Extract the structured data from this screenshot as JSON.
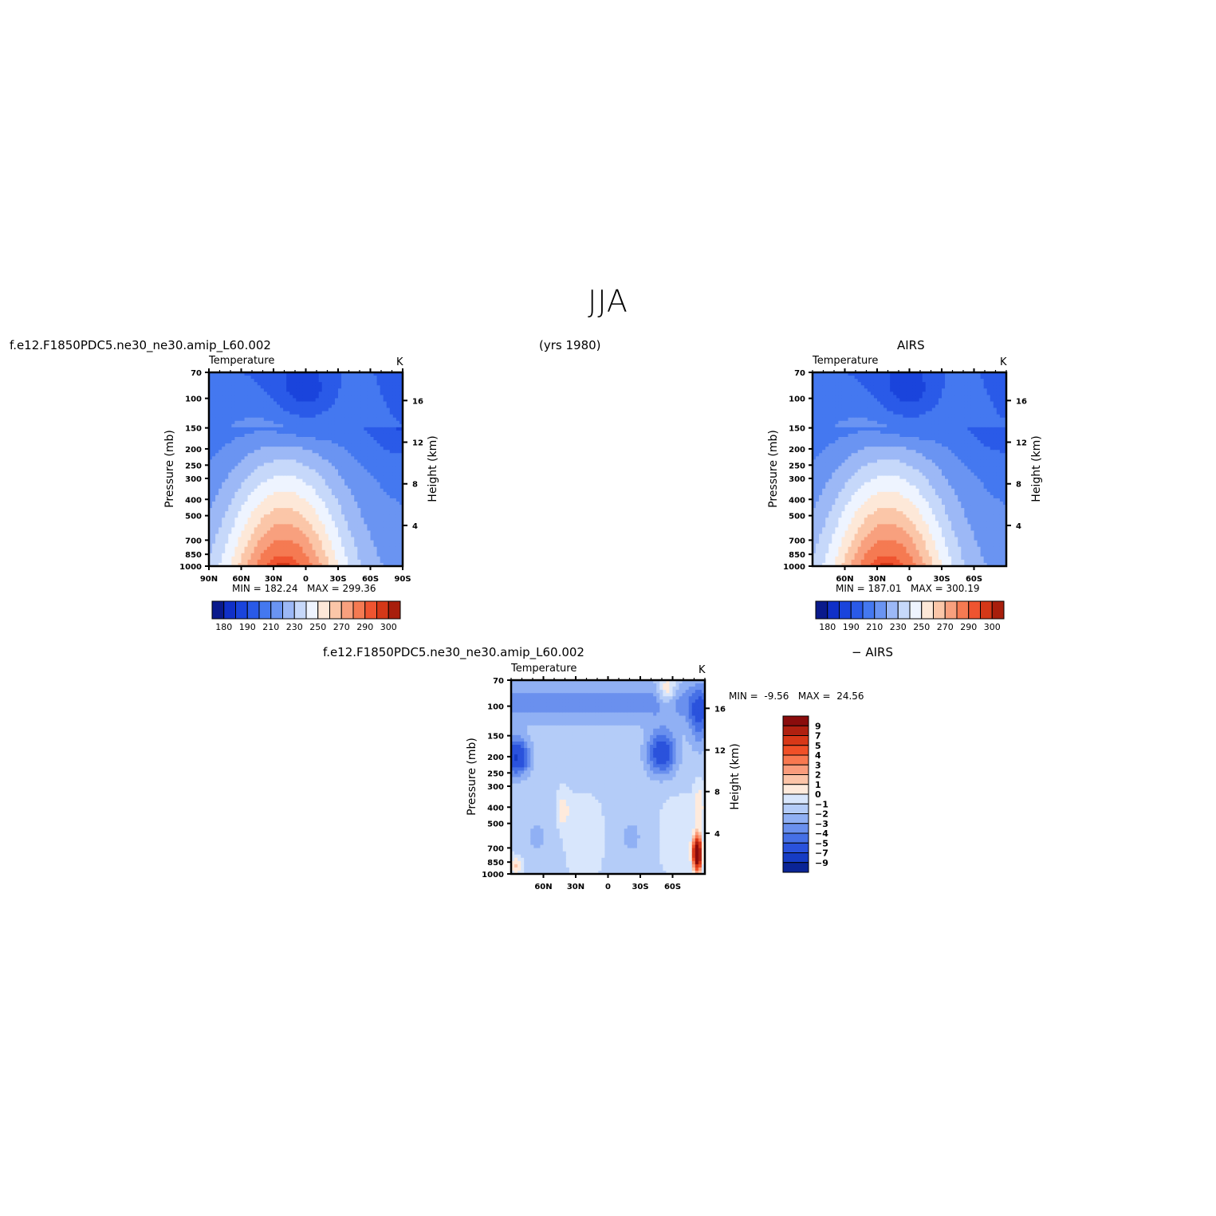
{
  "page": {
    "title": "JJA",
    "years": "(yrs 1980)",
    "model_name": "f.e12.F1850PDC5.ne30_ne30.amip_L60.002",
    "obs_name": "AIRS",
    "diff_label": "− AIRS"
  },
  "chart_data": [
    {
      "type": "heatmap",
      "id": "model",
      "title": "f.e12.F1850PDC5.ne30_ne30.amip_L60.002",
      "left_string": "Temperature",
      "right_string": "K",
      "ylabel": "Pressure (mb)",
      "ylabel_right": "Height (km)",
      "x_ticks": [
        "90N",
        "60N",
        "30N",
        "0",
        "30S",
        "60S",
        "90S"
      ],
      "y_ticks": [
        "70",
        "100",
        "150",
        "200",
        "250",
        "300",
        "400",
        "500",
        "700",
        "850",
        "1000"
      ],
      "height_ticks": [
        "4",
        "8",
        "12",
        "16"
      ],
      "xlim": [
        "90N",
        "90S"
      ],
      "ylim": [
        1000,
        70
      ],
      "min_label": "MIN =",
      "min": "182.24",
      "max_label": "MAX =",
      "max": "299.36",
      "colorbar_labels": [
        "180",
        "190",
        "210",
        "230",
        "250",
        "270",
        "290",
        "300"
      ]
    },
    {
      "type": "heatmap",
      "id": "obs",
      "title": "AIRS",
      "left_string": "Temperature",
      "right_string": "K",
      "ylabel": "Pressure (mb)",
      "ylabel_right": "Height (km)",
      "x_ticks": [
        "60N",
        "30N",
        "0",
        "30S",
        "60S"
      ],
      "y_ticks": [
        "70",
        "100",
        "150",
        "200",
        "250",
        "300",
        "400",
        "500",
        "700",
        "850",
        "1000"
      ],
      "height_ticks": [
        "4",
        "8",
        "12",
        "16"
      ],
      "ylim": [
        1000,
        70
      ],
      "min_label": "MIN =",
      "min": "187.01",
      "max_label": "MAX =",
      "max": "300.19",
      "colorbar_labels": [
        "180",
        "190",
        "210",
        "230",
        "250",
        "270",
        "290",
        "300"
      ]
    },
    {
      "type": "heatmap",
      "id": "diff",
      "title": "f.e12.F1850PDC5.ne30_ne30.amip_L60.002",
      "title_right": "− AIRS",
      "left_string": "Temperature",
      "right_string": "K",
      "ylabel": "Pressure (mb)",
      "ylabel_right": "Height (km)",
      "x_ticks": [
        "60N",
        "30N",
        "0",
        "30S",
        "60S"
      ],
      "y_ticks": [
        "70",
        "100",
        "150",
        "200",
        "250",
        "300",
        "400",
        "500",
        "700",
        "850",
        "1000"
      ],
      "height_ticks": [
        "4",
        "8",
        "12",
        "16"
      ],
      "ylim": [
        1000,
        70
      ],
      "min_label": "MIN =",
      "min": "-9.56",
      "max_label": "MAX =",
      "max": "24.56",
      "colorbar_labels": [
        "9",
        "7",
        "5",
        "4",
        "3",
        "2",
        "1",
        "0",
        "−1",
        "−2",
        "−3",
        "−4",
        "−5",
        "−7",
        "−9"
      ]
    }
  ],
  "colors": {
    "abs_palette": [
      "#0a1a8c",
      "#1030c8",
      "#1a44dc",
      "#2a5ae8",
      "#4478f0",
      "#6a94f2",
      "#9cb8f6",
      "#c6d8fa",
      "#eef4ff",
      "#fde8d8",
      "#fbc6a8",
      "#f8a07e",
      "#f57a52",
      "#ef5430",
      "#d43818",
      "#a81e0c"
    ],
    "diff_palette": [
      "#8a0c0c",
      "#b02010",
      "#d83818",
      "#f05028",
      "#f87850",
      "#fa9c7c",
      "#fcc4a8",
      "#feeadc",
      "#d8e6fc",
      "#b4ccf8",
      "#90b0f4",
      "#6a90ee",
      "#4670e6",
      "#2a52dc",
      "#163cc4",
      "#0a2496"
    ]
  }
}
